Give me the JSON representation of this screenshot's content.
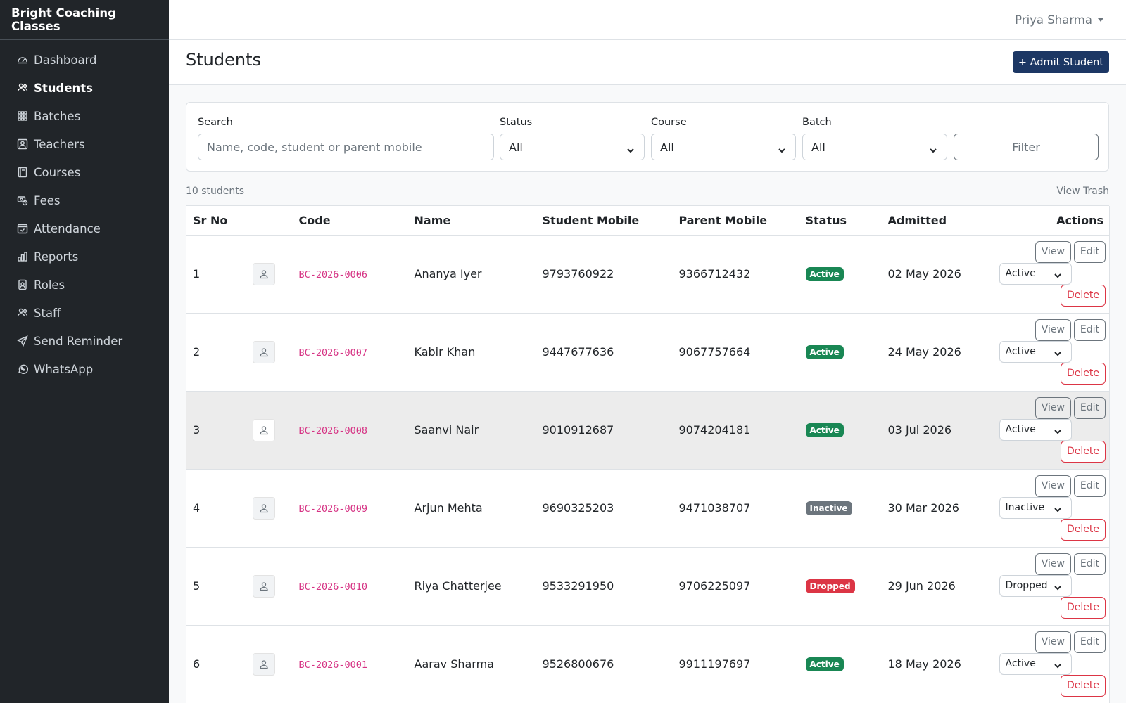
{
  "app": {
    "brand": "Bright Coaching Classes",
    "user": "Priya Sharma"
  },
  "sidebar": {
    "items": [
      {
        "label": "Dashboard",
        "icon": "dashboard-icon",
        "active": false
      },
      {
        "label": "Students",
        "icon": "users-icon",
        "active": true
      },
      {
        "label": "Batches",
        "icon": "grid-icon",
        "active": false
      },
      {
        "label": "Teachers",
        "icon": "teacher-icon",
        "active": false
      },
      {
        "label": "Courses",
        "icon": "book-icon",
        "active": false
      },
      {
        "label": "Fees",
        "icon": "fees-icon",
        "active": false
      },
      {
        "label": "Attendance",
        "icon": "calendar-check-icon",
        "active": false
      },
      {
        "label": "Reports",
        "icon": "bar-chart-icon",
        "active": false
      },
      {
        "label": "Roles",
        "icon": "badge-icon",
        "active": false
      },
      {
        "label": "Staff",
        "icon": "people-icon",
        "active": false
      },
      {
        "label": "Send Reminder",
        "icon": "send-icon",
        "active": false
      },
      {
        "label": "WhatsApp",
        "icon": "whatsapp-icon",
        "active": false
      }
    ]
  },
  "page": {
    "title": "Students",
    "admit_label": "+ Admit Student"
  },
  "filters": {
    "search_label": "Search",
    "search_placeholder": "Name, code, student or parent mobile",
    "status_label": "Status",
    "status_value": "All",
    "course_label": "Course",
    "course_value": "All",
    "batch_label": "Batch",
    "batch_value": "All",
    "filter_button": "Filter"
  },
  "summary": {
    "count": "10 students",
    "trash_link": "View Trash"
  },
  "table": {
    "headers": [
      "Sr No",
      "",
      "Code",
      "Name",
      "Student Mobile",
      "Parent Mobile",
      "Status",
      "Admitted",
      "Actions"
    ],
    "actions": {
      "view": "View",
      "edit": "Edit",
      "delete": "Delete"
    },
    "rows": [
      {
        "sr": "1",
        "code": "BC-2026-0006",
        "name": "Ananya Iyer",
        "student_mobile": "9793760922",
        "parent_mobile": "9366712432",
        "status": "Active",
        "status_color": "#198754",
        "admitted": "02 May 2026",
        "select": "Active"
      },
      {
        "sr": "2",
        "code": "BC-2026-0007",
        "name": "Kabir Khan",
        "student_mobile": "9447677636",
        "parent_mobile": "9067757664",
        "status": "Active",
        "status_color": "#198754",
        "admitted": "24 May 2026",
        "select": "Active"
      },
      {
        "sr": "3",
        "code": "BC-2026-0008",
        "name": "Saanvi Nair",
        "student_mobile": "9010912687",
        "parent_mobile": "9074204181",
        "status": "Active",
        "status_color": "#198754",
        "admitted": "03 Jul 2026",
        "select": "Active"
      },
      {
        "sr": "4",
        "code": "BC-2026-0009",
        "name": "Arjun Mehta",
        "student_mobile": "9690325203",
        "parent_mobile": "9471038707",
        "status": "Inactive",
        "status_color": "#6c757d",
        "admitted": "30 Mar 2026",
        "select": "Inactive"
      },
      {
        "sr": "5",
        "code": "BC-2026-0010",
        "name": "Riya Chatterjee",
        "student_mobile": "9533291950",
        "parent_mobile": "9706225097",
        "status": "Dropped",
        "status_color": "#dc3545",
        "admitted": "29 Jun 2026",
        "select": "Dropped"
      },
      {
        "sr": "6",
        "code": "BC-2026-0001",
        "name": "Aarav Sharma",
        "student_mobile": "9526800676",
        "parent_mobile": "9911197697",
        "status": "Active",
        "status_color": "#198754",
        "admitted": "18 May 2026",
        "select": "Active"
      }
    ]
  },
  "colors": {
    "sidebar_bg": "#212529",
    "primary": "#1c3764",
    "code_pink": "#d63384",
    "danger": "#dc3545",
    "success": "#198754",
    "secondary": "#6c757d"
  }
}
